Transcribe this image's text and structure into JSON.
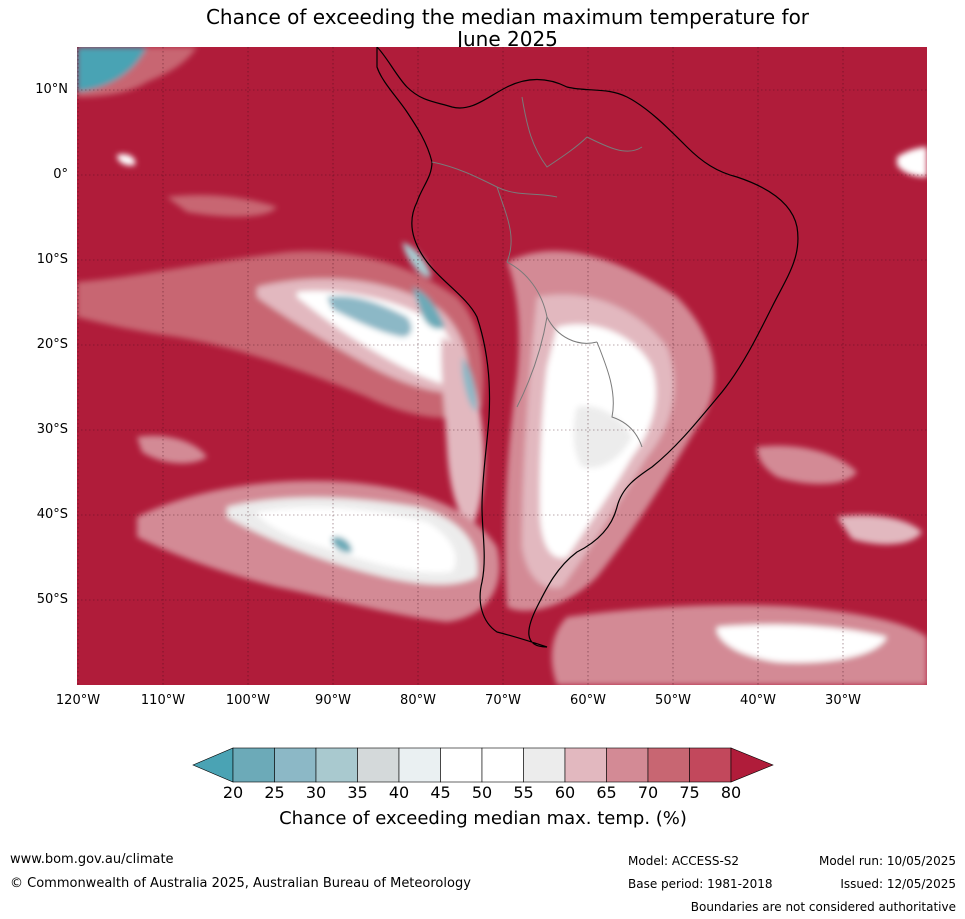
{
  "title": {
    "line1": "Chance of exceeding the median maximum temperature for",
    "line2": "June 2025"
  },
  "map": {
    "region": "South America and surrounding oceans",
    "background_category": "80+",
    "lat_labels": [
      "10°N",
      "0°",
      "10°S",
      "20°S",
      "30°S",
      "40°S",
      "50°S"
    ],
    "lon_labels": [
      "120°W",
      "110°W",
      "100°W",
      "90°W",
      "80°W",
      "70°W",
      "60°W",
      "50°W",
      "40°W",
      "30°W"
    ]
  },
  "colorbar": {
    "ticks": [
      "20",
      "25",
      "30",
      "35",
      "40",
      "45",
      "50",
      "55",
      "60",
      "65",
      "70",
      "75",
      "80"
    ],
    "colors": [
      "#4aa3b4",
      "#6caab8",
      "#8cb8c6",
      "#a9c9cf",
      "#d4d9da",
      "#eaf0f2",
      "#ffffff",
      "#ffffff",
      "#ececec",
      "#e2b8bf",
      "#d38a95",
      "#c86672",
      "#c2485c",
      "#b01c3a"
    ],
    "label": "Chance of exceeding median max. temp. (%)"
  },
  "footer": {
    "website": "www.bom.gov.au/climate",
    "copyright": "© Commonwealth of Australia 2025, Australian Bureau of Meteorology",
    "model": "Model: ACCESS-S2",
    "base_period": "Base period: 1981-2018",
    "model_run": "Model run: 10/05/2025",
    "issued": "Issued: 12/05/2025",
    "disclaimer": "Boundaries are not considered authoritative"
  }
}
